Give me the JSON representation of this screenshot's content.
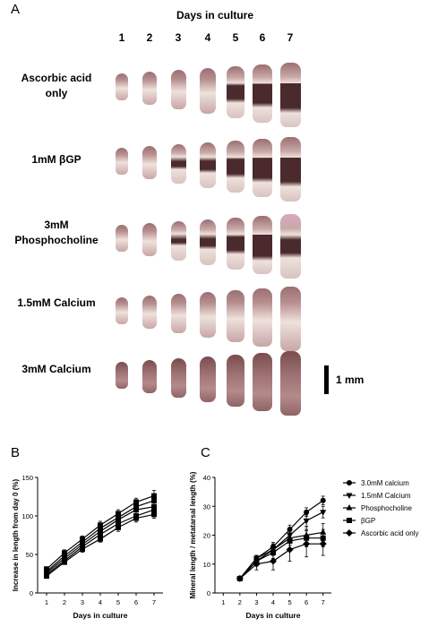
{
  "figure": {
    "panel_a_letter": "A",
    "panel_b_letter": "B",
    "panel_c_letter": "C",
    "header": "Days in culture",
    "days": [
      "1",
      "2",
      "3",
      "4",
      "5",
      "6",
      "7"
    ],
    "rows": [
      {
        "label": "Ascorbic acid only",
        "line1": "Ascorbic acid",
        "line2": "only"
      },
      {
        "label": "1mM βGP",
        "line1": "1mM βGP",
        "line2": ""
      },
      {
        "label": "3mM Phosphocholine",
        "line1": "3mM",
        "line2": "Phosphocholine"
      },
      {
        "label": "1.5mM Calcium",
        "line1": "1.5mM Calcium",
        "line2": ""
      },
      {
        "label": "3mM Calcium",
        "line1": "3mM Calcium",
        "line2": ""
      }
    ],
    "scale_label": "1 mm",
    "colors": {
      "bone_light": "#efe1dc",
      "bone_tip": "#9a6f72",
      "mineral": "#4a2a2c",
      "pink_tip": "#d9a8c0"
    }
  },
  "chart_data": [
    {
      "type": "line",
      "panel": "B",
      "xlabel": "Days in culture",
      "ylabel": "Increase in length from day 0 (%)",
      "x": [
        1,
        2,
        3,
        4,
        5,
        6,
        7
      ],
      "xlim": [
        0.5,
        7.5
      ],
      "ylim": [
        0,
        150
      ],
      "yticks": [
        0,
        50,
        100,
        150
      ],
      "grid": false,
      "series": [
        {
          "values": [
            31,
            52,
            70,
            88,
            103,
            118,
            126
          ],
          "err": [
            3,
            4,
            4,
            5,
            5,
            5,
            7
          ]
        },
        {
          "values": [
            28,
            48,
            66,
            84,
            98,
            112,
            120
          ],
          "err": [
            3,
            4,
            4,
            5,
            5,
            5,
            6
          ]
        },
        {
          "values": [
            26,
            45,
            63,
            80,
            95,
            108,
            112
          ],
          "err": [
            3,
            3,
            4,
            4,
            5,
            5,
            5
          ]
        },
        {
          "values": [
            24,
            42,
            60,
            76,
            90,
            100,
            108
          ],
          "err": [
            3,
            3,
            4,
            4,
            5,
            5,
            5
          ]
        },
        {
          "values": [
            22,
            40,
            57,
            70,
            85,
            97,
            102
          ],
          "err": [
            3,
            3,
            4,
            4,
            5,
            5,
            5
          ]
        }
      ]
    },
    {
      "type": "line",
      "panel": "C",
      "xlabel": "Days in culture",
      "ylabel": "Mineral length / metatarsal length (%)",
      "x": [
        1,
        2,
        3,
        4,
        5,
        6,
        7
      ],
      "xlim": [
        0.5,
        7.5
      ],
      "ylim": [
        0,
        40
      ],
      "yticks": [
        0,
        10,
        20,
        30,
        40
      ],
      "grid": false,
      "legend_placement": "right",
      "series": [
        {
          "name": "3.0mM calcium",
          "marker": "circle",
          "values": [
            null,
            5,
            12,
            16,
            22,
            28,
            32
          ],
          "err": [
            0,
            0,
            1,
            1.5,
            1.5,
            1.5,
            1.5
          ]
        },
        {
          "name": "1.5mM Calcium",
          "marker": "triangle-down",
          "values": [
            null,
            5,
            12,
            15,
            20,
            25,
            28
          ],
          "err": [
            0,
            0,
            1,
            1.5,
            1.5,
            2,
            2
          ]
        },
        {
          "name": "Phosphocholine",
          "marker": "triangle-up",
          "values": [
            null,
            5,
            11,
            15,
            19,
            20,
            21
          ],
          "err": [
            0,
            0,
            1.5,
            2,
            2.5,
            3,
            3
          ]
        },
        {
          "name": "βGP",
          "marker": "square",
          "values": [
            null,
            5,
            11,
            14,
            18,
            19,
            19
          ],
          "err": [
            0,
            0,
            1.5,
            2,
            3,
            3,
            3
          ]
        },
        {
          "name": "Ascorbic acid only",
          "marker": "diamond",
          "values": [
            null,
            5,
            10,
            11,
            15,
            17,
            17
          ],
          "err": [
            0,
            0,
            2,
            3,
            4,
            4.5,
            4
          ]
        }
      ]
    }
  ]
}
